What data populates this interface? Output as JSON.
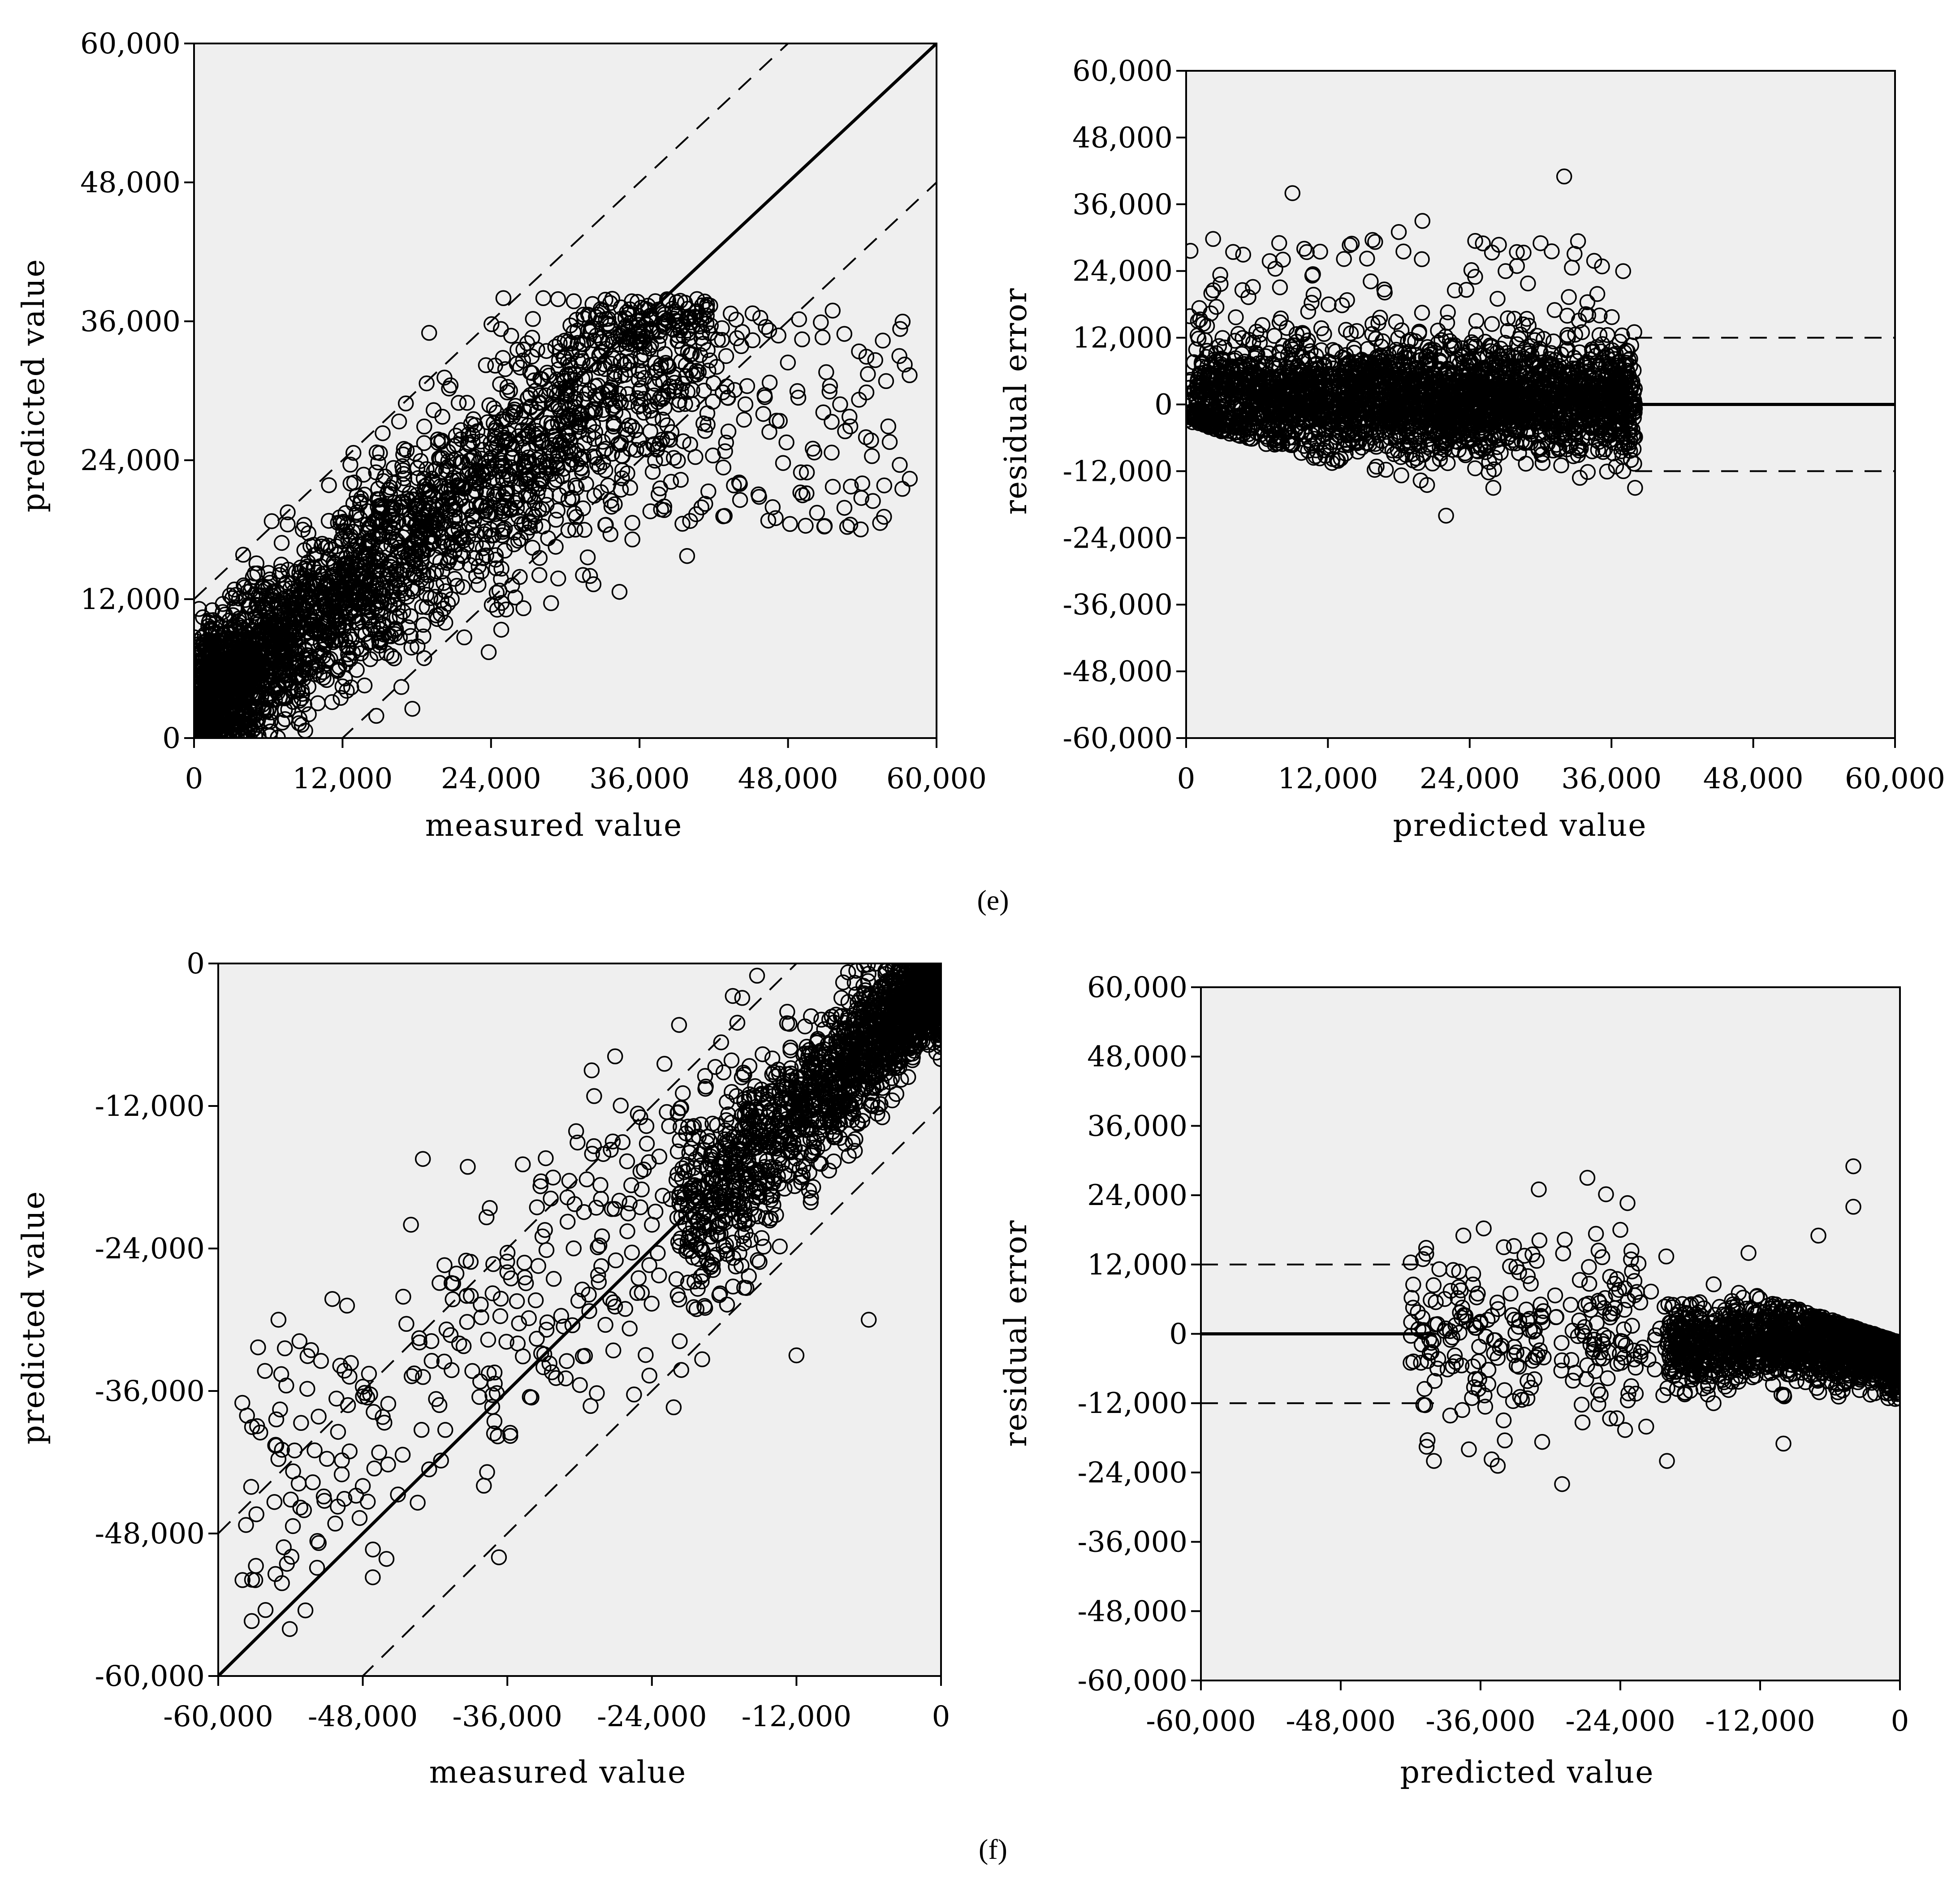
{
  "panels": [
    {
      "id": "e",
      "label": "(e)"
    },
    {
      "id": "f",
      "label": "(f)"
    }
  ],
  "chart_data": [
    {
      "panel": "e",
      "position": "top-left",
      "type": "scatter",
      "xlabel": "measured value",
      "ylabel": "predicted value",
      "xlim": [
        0,
        60000
      ],
      "ylim": [
        0,
        60000
      ],
      "xticks": [
        0,
        12000,
        24000,
        36000,
        48000,
        60000
      ],
      "yticks": [
        0,
        12000,
        24000,
        36000,
        48000,
        60000
      ],
      "xtick_labels": [
        "0",
        "12,000",
        "24,000",
        "36,000",
        "48,000",
        "60,000"
      ],
      "ytick_labels": [
        "0",
        "12,000",
        "24,000",
        "36,000",
        "48,000",
        "60,000"
      ],
      "reference_lines": [
        {
          "style": "solid",
          "x": [
            0,
            60000
          ],
          "y": [
            0,
            60000
          ]
        },
        {
          "style": "dashed",
          "x": [
            0,
            60000
          ],
          "y": [
            12000,
            72000
          ]
        },
        {
          "style": "dashed",
          "x": [
            0,
            60000
          ],
          "y": [
            -12000,
            48000
          ]
        }
      ],
      "points_approx": [
        [
          2000,
          9000
        ],
        [
          6000,
          10000
        ],
        [
          9000,
          14000
        ],
        [
          12000,
          17000
        ],
        [
          15000,
          20000
        ],
        [
          18000,
          20000
        ],
        [
          21000,
          24000
        ],
        [
          24000,
          25000
        ],
        [
          27000,
          27000
        ],
        [
          30000,
          29000
        ],
        [
          33000,
          28000
        ],
        [
          36000,
          30000
        ],
        [
          40000,
          35000
        ],
        [
          43000,
          33000
        ],
        [
          46000,
          28000
        ],
        [
          50000,
          25000
        ],
        [
          54000,
          22000
        ],
        [
          57000,
          33000
        ],
        [
          38000,
          20000
        ],
        [
          47000,
          19000
        ],
        [
          4000,
          2000
        ],
        [
          8000,
          4000
        ],
        [
          25000,
          38000
        ],
        [
          19000,
          35000
        ],
        [
          32000,
          14000
        ]
      ]
    },
    {
      "panel": "e",
      "position": "top-right",
      "type": "scatter",
      "xlabel": "predicted value",
      "ylabel": "residual error",
      "xlim": [
        0,
        60000
      ],
      "ylim": [
        -60000,
        60000
      ],
      "xticks": [
        0,
        12000,
        24000,
        36000,
        48000,
        60000
      ],
      "yticks": [
        -60000,
        -48000,
        -36000,
        -24000,
        -12000,
        0,
        12000,
        24000,
        36000,
        48000,
        60000
      ],
      "xtick_labels": [
        "0",
        "12,000",
        "24,000",
        "36,000",
        "48,000",
        "60,000"
      ],
      "ytick_labels": [
        "-60,000",
        "-48,000",
        "-36,000",
        "-24,000",
        "-12,000",
        "0",
        "12,000",
        "24,000",
        "36,000",
        "48,000",
        "60,000"
      ],
      "reference_lines": [
        {
          "style": "solid",
          "x": [
            38000,
            60000
          ],
          "y": [
            0,
            0
          ]
        },
        {
          "style": "dashed",
          "x": [
            38000,
            60000
          ],
          "y": [
            12000,
            12000
          ]
        },
        {
          "style": "dashed",
          "x": [
            38000,
            60000
          ],
          "y": [
            -12000,
            -12000
          ]
        }
      ],
      "points_approx": [
        [
          1000,
          15000
        ],
        [
          3000,
          8000
        ],
        [
          6000,
          2000
        ],
        [
          9000,
          38000
        ],
        [
          10000,
          28000
        ],
        [
          12000,
          -4000
        ],
        [
          15000,
          5000
        ],
        [
          18000,
          31000
        ],
        [
          20000,
          33000
        ],
        [
          22000,
          -20000
        ],
        [
          24000,
          6000
        ],
        [
          26000,
          -15000
        ],
        [
          30000,
          29000
        ],
        [
          32000,
          41000
        ],
        [
          35000,
          16000
        ],
        [
          37000,
          -12000
        ],
        [
          38000,
          -15000
        ]
      ]
    },
    {
      "panel": "f",
      "position": "bottom-left",
      "type": "scatter",
      "xlabel": "measured value",
      "ylabel": "predicted value",
      "xlim": [
        -60000,
        0
      ],
      "ylim": [
        -60000,
        0
      ],
      "xticks": [
        -60000,
        -48000,
        -36000,
        -24000,
        -12000,
        0
      ],
      "yticks": [
        -60000,
        -48000,
        -36000,
        -24000,
        -12000,
        0
      ],
      "xtick_labels": [
        "-60,000",
        "-48,000",
        "-36,000",
        "-24,000",
        "-12,000",
        "0"
      ],
      "ytick_labels": [
        "-60,000",
        "-48,000",
        "-36,000",
        "-24,000",
        "-12,000",
        "0"
      ],
      "reference_lines": [
        {
          "style": "solid",
          "x": [
            -60000,
            0
          ],
          "y": [
            -60000,
            0
          ]
        },
        {
          "style": "dashed",
          "x": [
            -60000,
            0
          ],
          "y": [
            -48000,
            12000
          ]
        },
        {
          "style": "dashed",
          "x": [
            -60000,
            0
          ],
          "y": [
            -72000,
            -12000
          ]
        }
      ],
      "points_approx": [
        [
          -58000,
          -37000
        ],
        [
          -55000,
          -30000
        ],
        [
          -52000,
          -41000
        ],
        [
          -48000,
          -44000
        ],
        [
          -44000,
          -22000
        ],
        [
          -40000,
          -32000
        ],
        [
          -36000,
          -26000
        ],
        [
          -33000,
          -34000
        ],
        [
          -29000,
          -9000
        ],
        [
          -27000,
          -25000
        ],
        [
          -24000,
          -22000
        ],
        [
          -20000,
          -24000
        ],
        [
          -17000,
          -16000
        ],
        [
          -14000,
          -8000
        ],
        [
          -11000,
          -9000
        ],
        [
          -8000,
          -5000
        ],
        [
          -5000,
          -3000
        ],
        [
          -2000,
          -1000
        ],
        [
          -6000,
          -30000
        ],
        [
          -12000,
          -33000
        ]
      ]
    },
    {
      "panel": "f",
      "position": "bottom-right",
      "type": "scatter",
      "xlabel": "predicted value",
      "ylabel": "residual error",
      "xlim": [
        -60000,
        0
      ],
      "ylim": [
        -60000,
        60000
      ],
      "xticks": [
        -60000,
        -48000,
        -36000,
        -24000,
        -12000,
        0
      ],
      "yticks": [
        -60000,
        -48000,
        -36000,
        -24000,
        -12000,
        0,
        12000,
        24000,
        36000,
        48000,
        60000
      ],
      "xtick_labels": [
        "-60,000",
        "-48,000",
        "-36,000",
        "-24,000",
        "-12,000",
        "0"
      ],
      "ytick_labels": [
        "-60,000",
        "-48,000",
        "-36,000",
        "-24,000",
        "-12,000",
        "0",
        "12,000",
        "24,000",
        "36,000",
        "48,000",
        "60,000"
      ],
      "reference_lines": [
        {
          "style": "solid",
          "x": [
            -60000,
            -40000
          ],
          "y": [
            0,
            0
          ]
        },
        {
          "style": "dashed",
          "x": [
            -60000,
            -40000
          ],
          "y": [
            12000,
            12000
          ]
        },
        {
          "style": "dashed",
          "x": [
            -60000,
            -40000
          ],
          "y": [
            -12000,
            -12000
          ]
        }
      ],
      "points_approx": [
        [
          -42000,
          -5000
        ],
        [
          -40000,
          -22000
        ],
        [
          -37000,
          -20000
        ],
        [
          -34000,
          15000
        ],
        [
          -31000,
          25000
        ],
        [
          -29000,
          -26000
        ],
        [
          -27000,
          5000
        ],
        [
          -24000,
          18000
        ],
        [
          -20000,
          -22000
        ],
        [
          -16000,
          -12000
        ],
        [
          -13000,
          14000
        ],
        [
          -10000,
          -19000
        ],
        [
          -7000,
          17000
        ],
        [
          -4000,
          29000
        ],
        [
          -4000,
          22000
        ],
        [
          -2000,
          -8000
        ]
      ]
    }
  ]
}
